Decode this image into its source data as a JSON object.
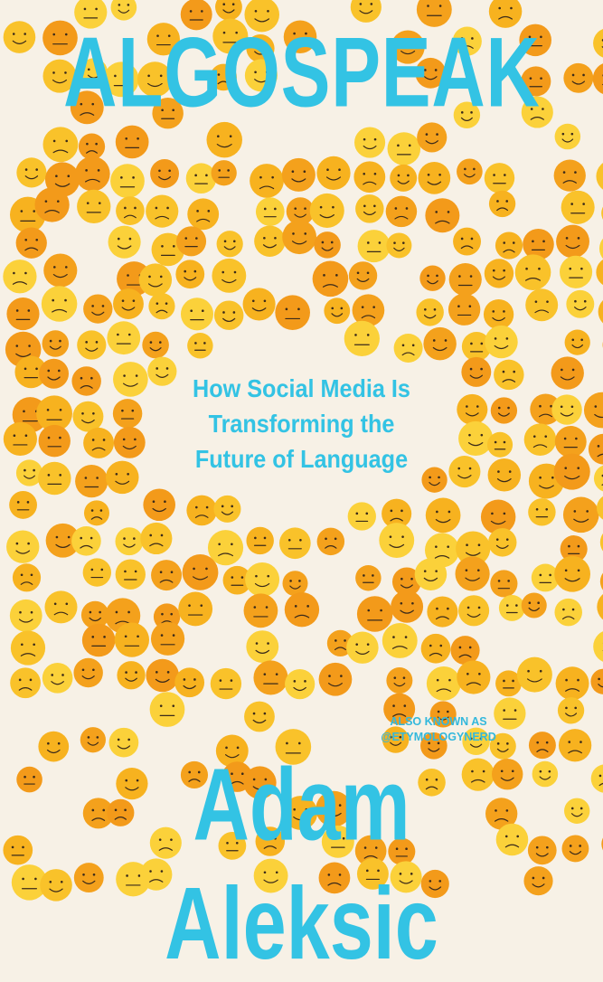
{
  "cover": {
    "title": "ALGOSPEAK",
    "subtitle_lines": [
      "How Social Media Is",
      "Transforming the",
      "Future of Language"
    ],
    "aka_lines": [
      "ALSO KNOWN AS",
      "@ETYMOLOGYNERD"
    ],
    "author": "Adam Aleksic"
  },
  "colors": {
    "background": "#f7f1e6",
    "text": "#33c3e4",
    "face_colors": [
      "#f9c22a",
      "#f7b21f",
      "#f4a11c",
      "#fbd13a",
      "#f39a1a"
    ],
    "face_ink": "#3a2a1a"
  },
  "decoration": {
    "icon": "emoji-face-icon"
  }
}
